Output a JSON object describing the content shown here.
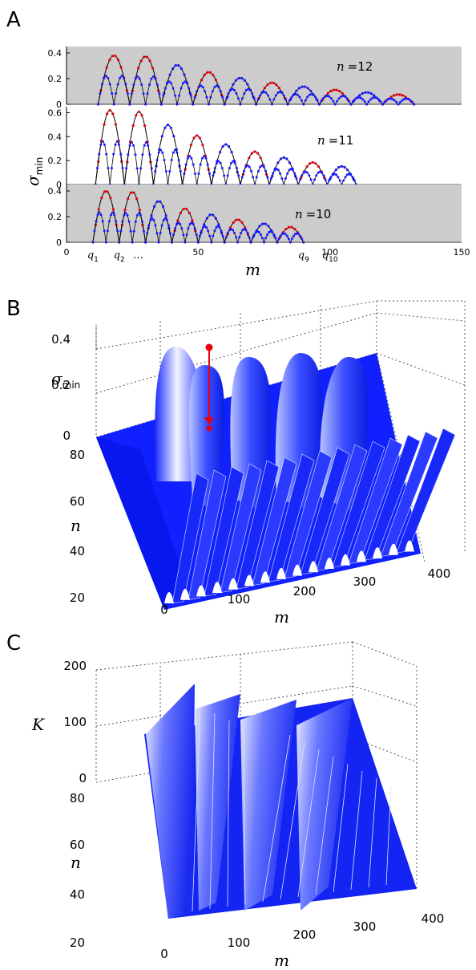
{
  "figure": {
    "panels": [
      "A",
      "B",
      "C"
    ]
  },
  "chart_data": [
    {
      "panel": "A",
      "type": "line",
      "subplots": [
        {
          "label_n": "n",
          "label_eq": "=12",
          "qn": 12,
          "ylim": [
            0,
            0.45
          ],
          "yticks": [
            0,
            0.2,
            0.4
          ],
          "shaded": true
        },
        {
          "label_n": "n",
          "label_eq": "=11",
          "qn": 11,
          "ylim": [
            0,
            0.65
          ],
          "yticks": [
            0,
            0.2,
            0.4,
            0.6
          ],
          "shaded": false
        },
        {
          "label_n": "n",
          "label_eq": "=10",
          "qn": 10,
          "ylim": [
            0,
            0.45
          ],
          "yticks": [
            0,
            0.2,
            0.4
          ],
          "shaded": true
        }
      ],
      "xlim": [
        0,
        150
      ],
      "xticks": [
        0,
        50,
        100,
        150
      ],
      "xlabel": "m",
      "ylabel_sym": "σ",
      "ylabel_sub": "min",
      "q_labels": [
        {
          "base": "q",
          "sub": "1",
          "x": 10
        },
        {
          "base": "q",
          "sub": "2",
          "x": 20
        },
        {
          "base": "…",
          "sub": "",
          "x": 26
        },
        {
          "base": "q",
          "sub": "9",
          "x": 90
        },
        {
          "base": "q",
          "sub": "10",
          "x": 100
        }
      ],
      "colors": {
        "upper": "#e8000b",
        "lower": "#1a1aff",
        "curve": "#000000",
        "shade": "#cccccc"
      }
    },
    {
      "panel": "B",
      "type": "surface",
      "zlabel_sym": "σ",
      "zlabel_sub": "min",
      "ylabel": "n",
      "xlabel": "m",
      "zticks": [
        "0",
        "0.2",
        "0.4"
      ],
      "nticks": [
        "20",
        "40",
        "60",
        "80"
      ],
      "mticks": [
        "0",
        "100",
        "200",
        "300",
        "400"
      ],
      "zlim": [
        0,
        0.4
      ],
      "nlim": [
        20,
        80
      ],
      "mlim": [
        0,
        400
      ],
      "surface_color": "#1a1aff",
      "marker_color": "#e8000b"
    },
    {
      "panel": "C",
      "type": "surface",
      "zlabel": "K",
      "ylabel": "n",
      "xlabel": "m",
      "zticks": [
        "0",
        "100",
        "200"
      ],
      "nticks": [
        "20",
        "40",
        "60",
        "80"
      ],
      "mticks": [
        "0",
        "100",
        "200",
        "300",
        "400"
      ],
      "zlim": [
        0,
        200
      ],
      "nlim": [
        20,
        80
      ],
      "mlim": [
        0,
        400
      ],
      "surface_color": "#1a1aff"
    }
  ]
}
